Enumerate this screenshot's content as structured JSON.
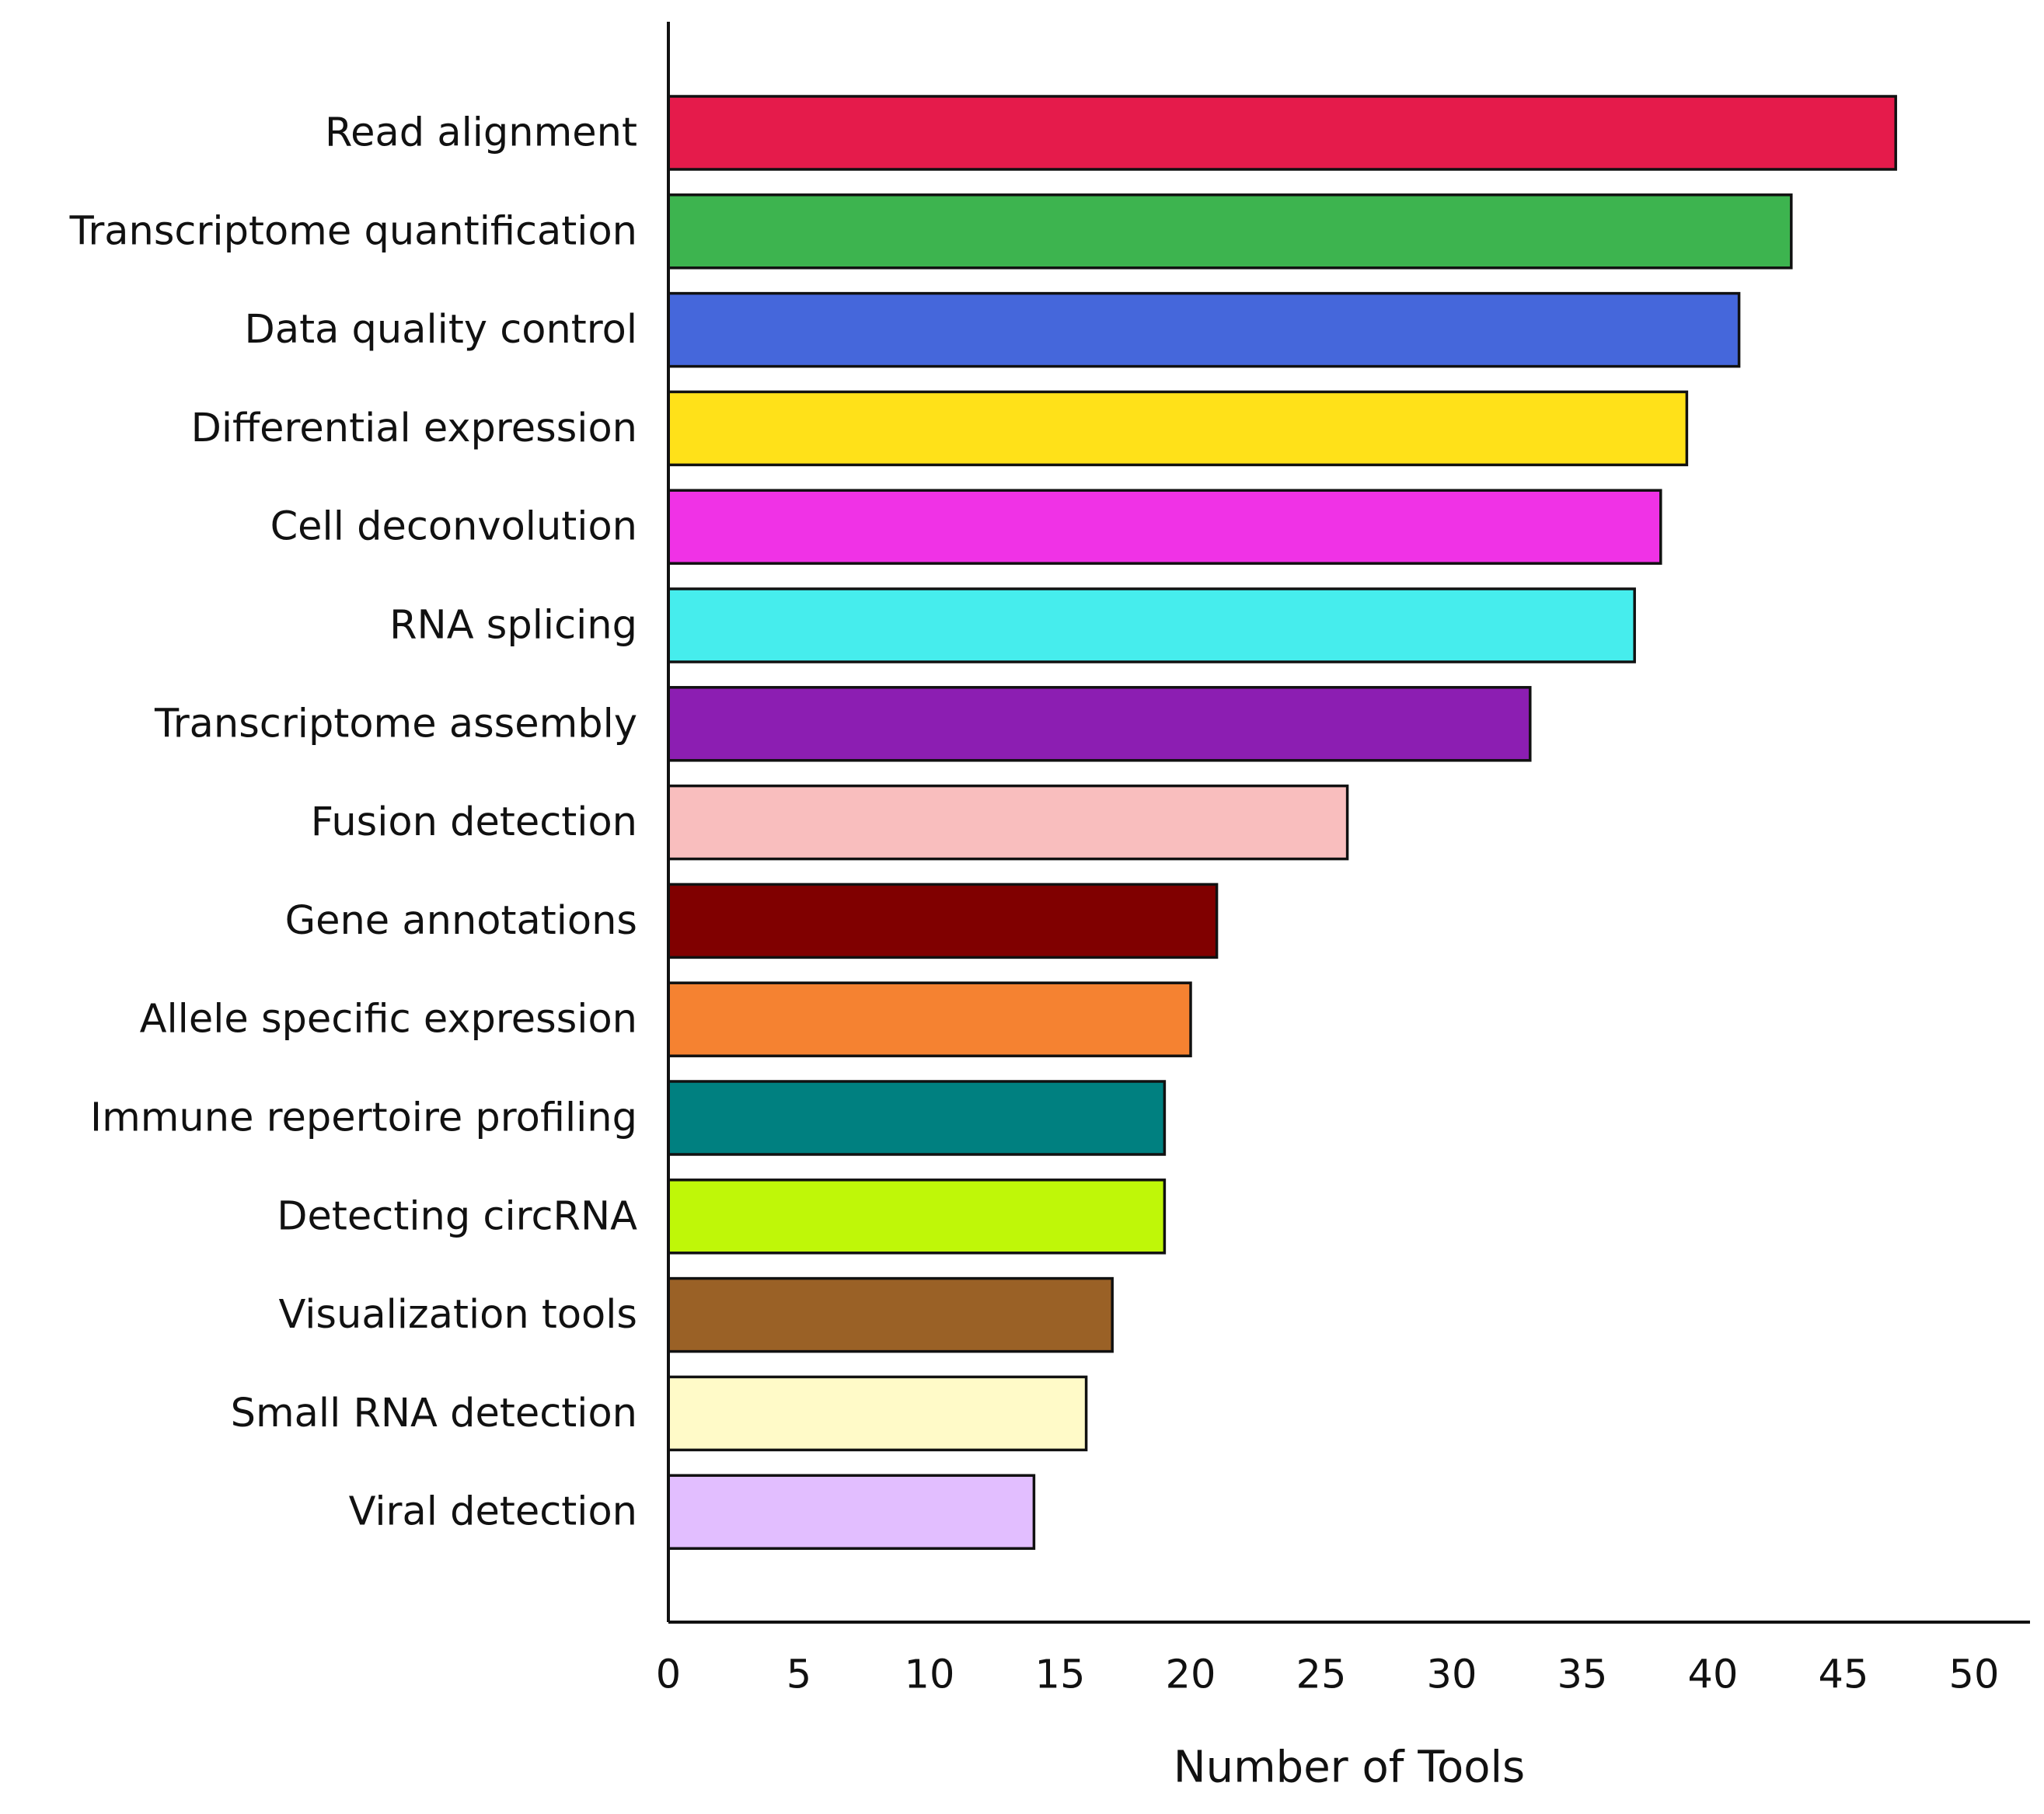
{
  "chart_data": {
    "type": "bar",
    "orientation": "horizontal",
    "categories": [
      "Read alignment",
      "Transcriptome quantification",
      "Data quality control",
      "Differential expression",
      "Cell deconvolution",
      "RNA splicing",
      "Transcriptome assembly",
      "Fusion detection",
      "Gene annotations",
      "Allele specific expression",
      "Immune repertoire profiling",
      "Detecting circRNA",
      "Visualization tools",
      "Small RNA detection",
      "Viral detection"
    ],
    "values": [
      47,
      43,
      41,
      39,
      38,
      37,
      33,
      26,
      21,
      20,
      19,
      19,
      17,
      16,
      14
    ],
    "colors": [
      "#e51b4b",
      "#3db44f",
      "#4567db",
      "#ffe119",
      "#f032e6",
      "#46eded",
      "#8c1eb2",
      "#f9bebe",
      "#800000",
      "#f58231",
      "#008080",
      "#bff708",
      "#9a6126",
      "#fffac8",
      "#e2beff"
    ],
    "title": "",
    "xlabel": "Number of Tools",
    "ylabel": "",
    "xlim": [
      0,
      50
    ],
    "xticks": [
      "0",
      "5",
      "10",
      "15",
      "20",
      "25",
      "30",
      "35",
      "40",
      "45",
      "50"
    ],
    "grid": false,
    "legend": "none"
  }
}
